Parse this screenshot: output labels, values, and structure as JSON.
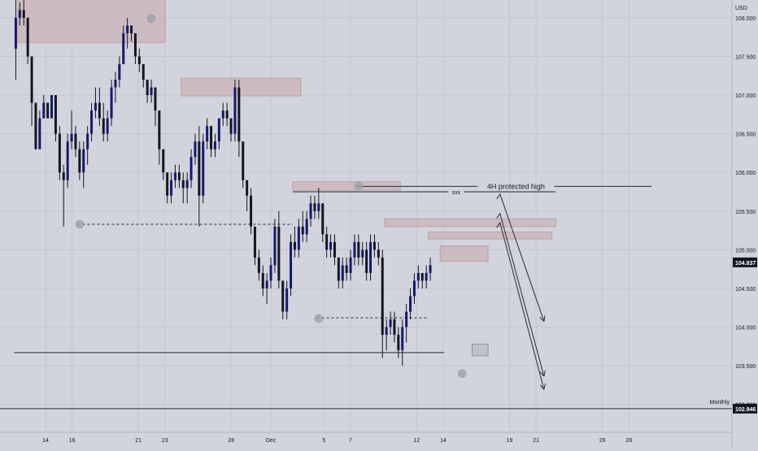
{
  "chart_data": {
    "type": "candlestick",
    "currency": "USD",
    "ylim": [
      102.65,
      108.23
    ],
    "price_ticks": [
      "108.000",
      "107.500",
      "107.000",
      "106.500",
      "106.000",
      "105.500",
      "105.000",
      "104.500",
      "104.000",
      "103.500",
      "103.000"
    ],
    "date_ticks": [
      {
        "label": "14",
        "day": 0
      },
      {
        "label": "16",
        "day": 2
      },
      {
        "label": "21",
        "day": 7
      },
      {
        "label": "23",
        "day": 9
      },
      {
        "label": "28",
        "day": 14
      },
      {
        "label": "Dec",
        "day": 17
      },
      {
        "label": "5",
        "day": 21
      },
      {
        "label": "7",
        "day": 23
      },
      {
        "label": "12",
        "day": 28
      },
      {
        "label": "14",
        "day": 30
      },
      {
        "label": "19",
        "day": 35
      },
      {
        "label": "21",
        "day": 37
      },
      {
        "label": "26",
        "day": 42
      },
      {
        "label": "28",
        "day": 44
      }
    ],
    "candles": [
      [
        107.6,
        108.3,
        107.2,
        108.0
      ],
      [
        108.0,
        108.2,
        107.9,
        108.1
      ],
      [
        108.1,
        108.3,
        107.9,
        108.0
      ],
      [
        108.0,
        108.0,
        107.4,
        107.5
      ],
      [
        107.5,
        107.5,
        106.6,
        106.9
      ],
      [
        106.9,
        106.9,
        106.3,
        106.3
      ],
      [
        106.3,
        106.8,
        106.3,
        106.7
      ],
      [
        106.7,
        107.0,
        106.7,
        106.9
      ],
      [
        106.9,
        106.9,
        106.7,
        106.7
      ],
      [
        106.7,
        107.0,
        106.7,
        107.0
      ],
      [
        107.0,
        107.0,
        106.4,
        106.5
      ],
      [
        106.5,
        106.6,
        105.9,
        106.0
      ],
      [
        106.0,
        106.1,
        105.3,
        105.9
      ],
      [
        105.9,
        106.5,
        105.8,
        106.4
      ],
      [
        106.4,
        106.8,
        106.3,
        106.5
      ],
      [
        106.5,
        106.6,
        106.2,
        106.3
      ],
      [
        106.3,
        106.4,
        105.9,
        106.0
      ],
      [
        106.0,
        106.4,
        105.8,
        106.3
      ],
      [
        106.3,
        106.6,
        106.1,
        106.5
      ],
      [
        106.5,
        106.9,
        106.4,
        106.8
      ],
      [
        106.8,
        107.1,
        106.7,
        106.9
      ],
      [
        106.9,
        107.1,
        106.6,
        106.7
      ],
      [
        106.7,
        106.9,
        106.4,
        106.5
      ],
      [
        106.5,
        106.8,
        106.4,
        106.7
      ],
      [
        106.7,
        107.2,
        106.6,
        107.1
      ],
      [
        107.1,
        107.3,
        106.9,
        107.2
      ],
      [
        107.2,
        107.5,
        107.1,
        107.4
      ],
      [
        107.4,
        107.9,
        107.4,
        107.8
      ],
      [
        107.8,
        108.0,
        107.6,
        107.9
      ],
      [
        107.9,
        107.9,
        107.7,
        107.8
      ],
      [
        107.8,
        107.8,
        107.4,
        107.5
      ],
      [
        107.5,
        107.6,
        107.3,
        107.4
      ],
      [
        107.4,
        107.4,
        107.1,
        107.2
      ],
      [
        107.2,
        107.2,
        106.9,
        107.0
      ],
      [
        107.0,
        107.2,
        106.9,
        107.1
      ],
      [
        107.1,
        107.1,
        106.6,
        106.8
      ],
      [
        106.8,
        106.8,
        106.1,
        106.3
      ],
      [
        106.3,
        106.3,
        105.9,
        106.0
      ],
      [
        106.0,
        106.0,
        105.6,
        105.7
      ],
      [
        105.7,
        106.0,
        105.6,
        105.9
      ],
      [
        105.9,
        106.1,
        105.8,
        106.0
      ],
      [
        106.0,
        106.1,
        105.8,
        105.9
      ],
      [
        105.9,
        106.0,
        105.6,
        105.8
      ],
      [
        105.8,
        106.0,
        105.6,
        105.9
      ],
      [
        105.9,
        106.3,
        105.8,
        106.2
      ],
      [
        106.2,
        106.5,
        106.1,
        106.4
      ],
      [
        106.4,
        106.6,
        105.3,
        105.7
      ],
      [
        105.7,
        106.5,
        105.6,
        106.4
      ],
      [
        106.4,
        106.7,
        106.3,
        106.6
      ],
      [
        106.6,
        106.6,
        106.2,
        106.3
      ],
      [
        106.3,
        106.5,
        106.2,
        106.4
      ],
      [
        106.4,
        106.7,
        106.3,
        106.7
      ],
      [
        106.7,
        106.9,
        106.6,
        106.8
      ],
      [
        106.8,
        106.9,
        106.6,
        106.7
      ],
      [
        106.7,
        106.7,
        106.4,
        106.5
      ],
      [
        106.5,
        107.2,
        106.4,
        107.1
      ],
      [
        107.1,
        107.2,
        106.2,
        106.4
      ],
      [
        106.4,
        106.4,
        105.8,
        105.9
      ],
      [
        105.9,
        105.9,
        105.5,
        105.7
      ],
      [
        105.7,
        105.8,
        105.2,
        105.3
      ],
      [
        105.3,
        105.3,
        104.8,
        104.9
      ],
      [
        104.9,
        105.0,
        104.6,
        104.7
      ],
      [
        104.7,
        104.8,
        104.4,
        104.5
      ],
      [
        104.5,
        104.7,
        104.3,
        104.6
      ],
      [
        104.6,
        104.9,
        104.5,
        104.8
      ],
      [
        104.8,
        105.4,
        104.7,
        105.3
      ],
      [
        105.3,
        105.5,
        104.5,
        104.6
      ],
      [
        104.6,
        104.6,
        104.1,
        104.2
      ],
      [
        104.2,
        104.6,
        104.1,
        104.5
      ],
      [
        104.5,
        105.2,
        104.4,
        105.1
      ],
      [
        105.1,
        105.3,
        104.9,
        105.0
      ],
      [
        105.0,
        105.4,
        104.9,
        105.3
      ],
      [
        105.3,
        105.5,
        105.1,
        105.2
      ],
      [
        105.2,
        105.5,
        105.1,
        105.4
      ],
      [
        105.4,
        105.7,
        105.3,
        105.6
      ],
      [
        105.6,
        105.7,
        105.4,
        105.5
      ],
      [
        105.5,
        105.8,
        105.4,
        105.6
      ],
      [
        105.6,
        105.6,
        105.1,
        105.2
      ],
      [
        105.2,
        105.3,
        104.9,
        105.0
      ],
      [
        105.0,
        105.2,
        104.9,
        105.1
      ],
      [
        105.1,
        105.2,
        104.8,
        104.9
      ],
      [
        104.9,
        104.9,
        104.5,
        104.6
      ],
      [
        104.6,
        104.9,
        104.5,
        104.8
      ],
      [
        104.8,
        104.9,
        104.6,
        104.7
      ],
      [
        104.7,
        105.0,
        104.6,
        104.9
      ],
      [
        104.9,
        105.2,
        104.8,
        105.1
      ],
      [
        105.1,
        105.2,
        104.8,
        104.9
      ],
      [
        104.9,
        105.1,
        104.8,
        105.0
      ],
      [
        105.0,
        105.1,
        104.6,
        104.7
      ],
      [
        104.7,
        105.2,
        104.6,
        105.1
      ],
      [
        105.1,
        105.2,
        104.9,
        105.0
      ],
      [
        105.0,
        105.1,
        104.8,
        104.9
      ],
      [
        104.9,
        105.0,
        103.6,
        103.9
      ],
      [
        103.9,
        104.1,
        103.7,
        104.0
      ],
      [
        104.0,
        104.2,
        103.9,
        104.1
      ],
      [
        104.1,
        104.2,
        103.8,
        103.9
      ],
      [
        103.9,
        104.0,
        103.6,
        103.7
      ],
      [
        103.7,
        104.1,
        103.5,
        104.0
      ],
      [
        104.0,
        104.3,
        103.8,
        104.2
      ],
      [
        104.2,
        104.5,
        104.1,
        104.4
      ],
      [
        104.4,
        104.7,
        104.3,
        104.6
      ],
      [
        104.6,
        104.8,
        104.5,
        104.7
      ],
      [
        104.7,
        104.7,
        104.5,
        104.6
      ],
      [
        104.6,
        104.8,
        104.5,
        104.7
      ],
      [
        104.7,
        104.9,
        104.6,
        104.8
      ]
    ],
    "zones": [
      {
        "b0": 1,
        "b1": 38,
        "top": 108.55,
        "bottom": 107.68,
        "color": "#c9b4b8",
        "edge": "#bba1a5"
      },
      {
        "b0": 42,
        "b1": 72,
        "top": 107.22,
        "bottom": 106.99,
        "color": "#c9b4b8",
        "edge": "#bba1a5"
      },
      {
        "b0": 70,
        "b1": 97,
        "top": 105.88,
        "bottom": 105.77,
        "color": "#c9b4b8",
        "edge": "#bba1a5"
      },
      {
        "b0": 93,
        "b1": 136,
        "top": 105.4,
        "bottom": 105.3,
        "color": "#c9b4b8",
        "edge": "#bba1a5"
      },
      {
        "b0": 104,
        "b1": 135,
        "top": 105.23,
        "bottom": 105.14,
        "color": "#c9b4b8",
        "edge": "#bba1a5"
      },
      {
        "b0": 107,
        "b1": 119,
        "top": 105.05,
        "bottom": 104.85,
        "color": "#c9b4b8",
        "edge": "#bba1a5"
      },
      {
        "b0": 115,
        "b1": 119,
        "top": 103.78,
        "bottom": 103.63,
        "color": "#b8bcc7",
        "edge": "#8f939e"
      }
    ],
    "markers": [
      {
        "bar": 16,
        "price": 105.33
      },
      {
        "bar": 34,
        "price": 107.99
      },
      {
        "bar": 76,
        "price": 104.11
      },
      {
        "bar": 86,
        "price": 105.82
      },
      {
        "bar": 112,
        "price": 103.4
      }
    ],
    "levels": [
      {
        "b0": 16,
        "b1": 70,
        "price": 105.33,
        "dash": true
      },
      {
        "b0": 76,
        "b1": 104,
        "price": 104.12,
        "dash": true
      },
      {
        "b0": 0,
        "b1": 108,
        "price": 103.67,
        "dash": false
      },
      {
        "b0": 86,
        "b1": 160,
        "price": 105.82,
        "dash": false,
        "label": "4H protected high",
        "label_bar": 126
      },
      {
        "b0": 70,
        "b1": 136,
        "price": 105.75,
        "dash": false,
        "label": "xxx",
        "label_bar": 111
      }
    ],
    "arrows": [
      {
        "from_bar": 122,
        "from_price": 105.72,
        "to_bar": 133,
        "to_price": 104.08
      },
      {
        "from_bar": 122,
        "from_price": 105.47,
        "to_bar": 133,
        "to_price": 103.37
      },
      {
        "from_bar": 122,
        "from_price": 105.35,
        "to_bar": 133,
        "to_price": 103.2
      }
    ],
    "monthly_level": {
      "price": 102.946,
      "label": "Monthly",
      "tag": "102.946"
    },
    "last_price": {
      "price": 104.837,
      "tag": "104.837"
    },
    "colors": {
      "background": "#d1d4dc",
      "up": "#131a6d",
      "down": "#131722",
      "wick": "#131722",
      "text": "#131722",
      "grid": "#c4c7cf",
      "line": "#252a36",
      "price_tag": "#131722"
    }
  }
}
